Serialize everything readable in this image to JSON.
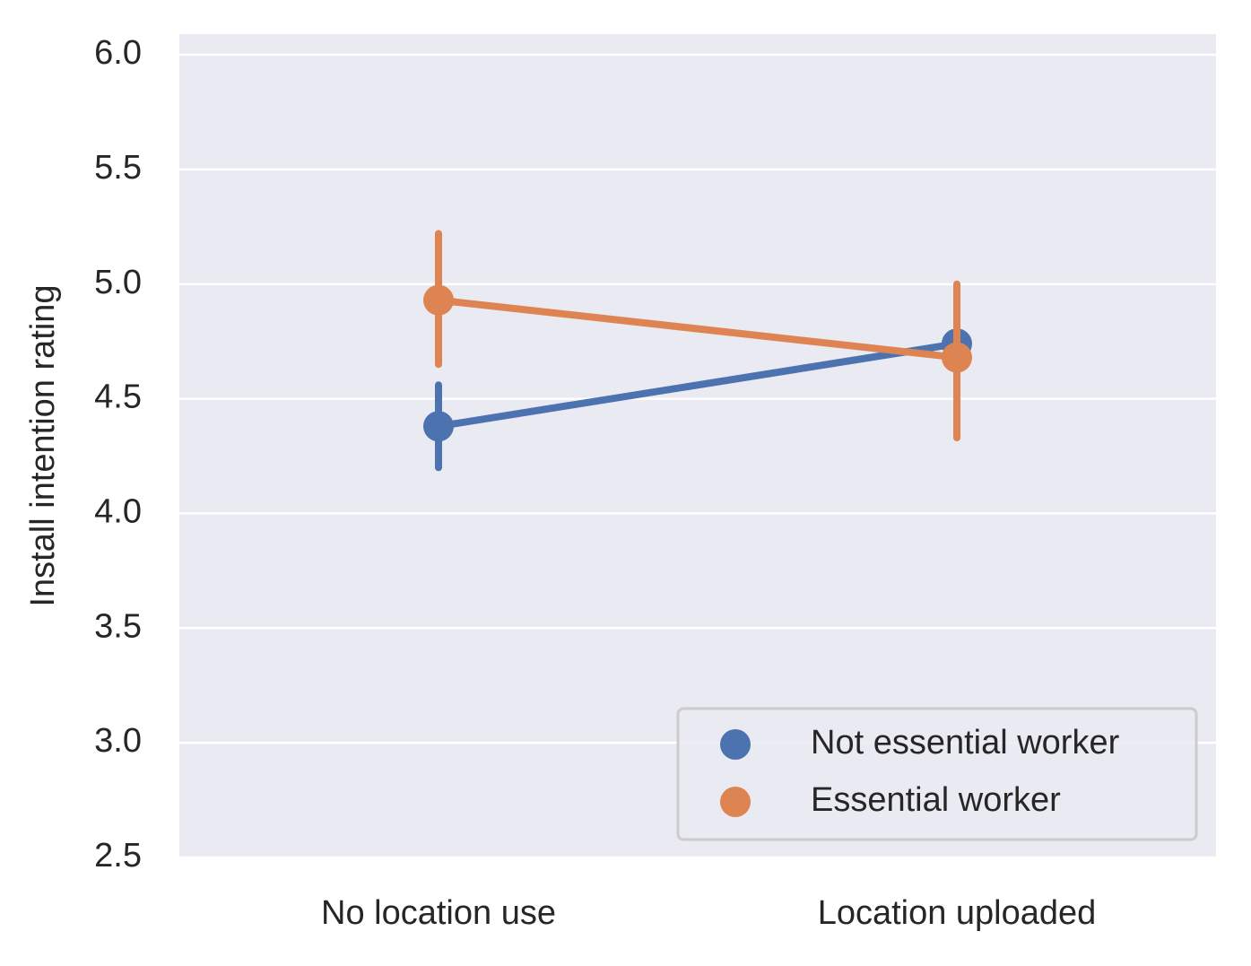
{
  "chart_data": {
    "type": "pointplot",
    "ylabel": "Install intention rating",
    "categories": [
      "No location use",
      "Location uploaded"
    ],
    "series": [
      {
        "name": "Not essential worker",
        "color": "#4c72b0",
        "values": [
          4.38,
          4.74
        ],
        "ci_low": [
          4.2,
          4.58
        ],
        "ci_high": [
          4.56,
          4.9
        ]
      },
      {
        "name": "Essential worker",
        "color": "#dd8452",
        "values": [
          4.93,
          4.68
        ],
        "ci_low": [
          4.65,
          4.33
        ],
        "ci_high": [
          5.22,
          5.0
        ]
      }
    ],
    "ylim": [
      2.5,
      6.09
    ],
    "yticks": [
      {
        "value": 2.5,
        "label": "2.5"
      },
      {
        "value": 3.0,
        "label": "3.0"
      },
      {
        "value": 3.5,
        "label": "3.5"
      },
      {
        "value": 4.0,
        "label": "4.0"
      },
      {
        "value": 4.5,
        "label": "4.5"
      },
      {
        "value": 5.0,
        "label": "5.0"
      },
      {
        "value": 5.5,
        "label": "5.5"
      },
      {
        "value": 6.0,
        "label": "6.0"
      }
    ],
    "grid": true,
    "legend": "lower right"
  }
}
